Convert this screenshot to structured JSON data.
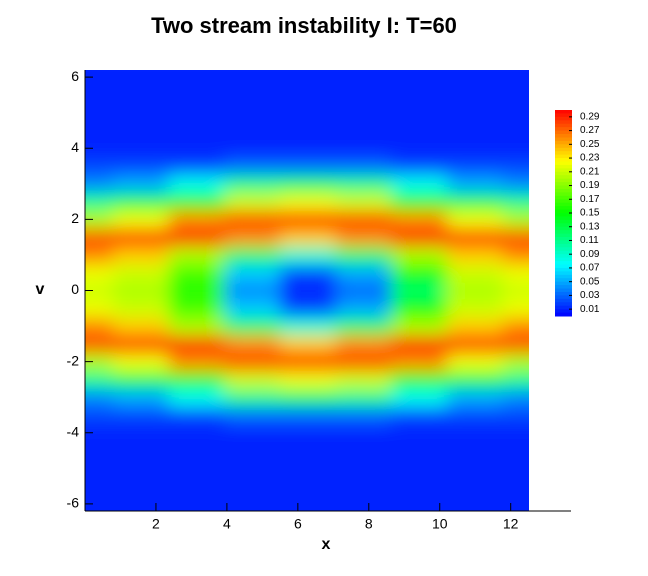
{
  "chart_data": {
    "type": "contour",
    "title": "Two stream instability I: T=60",
    "x_label": "x",
    "y_label": "v",
    "x": [
      0,
      1.57,
      3.14,
      4.71,
      6.28,
      7.85,
      9.42,
      10.99,
      12.57
    ],
    "y": [
      -6,
      -5.5,
      -5,
      -4.5,
      -4,
      -3.5,
      -3,
      -2.5,
      -2,
      -1.5,
      -1,
      -0.5,
      0,
      0.5,
      1,
      1.5,
      2,
      2.5,
      3,
      3.5,
      4,
      4.5,
      5,
      5.5,
      6
    ],
    "z": [
      [
        0.01,
        0.01,
        0.01,
        0.01,
        0.01,
        0.01,
        0.01,
        0.01,
        0.01
      ],
      [
        0.01,
        0.01,
        0.01,
        0.01,
        0.01,
        0.01,
        0.01,
        0.01,
        0.01
      ],
      [
        0.01,
        0.01,
        0.01,
        0.01,
        0.01,
        0.01,
        0.01,
        0.01,
        0.01
      ],
      [
        0.01,
        0.01,
        0.01,
        0.01,
        0.01,
        0.01,
        0.01,
        0.01,
        0.01
      ],
      [
        0.01,
        0.01,
        0.01,
        0.01,
        0.01,
        0.01,
        0.01,
        0.01,
        0.01
      ],
      [
        0.02,
        0.02,
        0.02,
        0.03,
        0.03,
        0.03,
        0.02,
        0.02,
        0.02
      ],
      [
        0.04,
        0.05,
        0.08,
        0.11,
        0.12,
        0.11,
        0.08,
        0.05,
        0.04
      ],
      [
        0.11,
        0.13,
        0.16,
        0.21,
        0.22,
        0.21,
        0.16,
        0.13,
        0.11
      ],
      [
        0.2,
        0.22,
        0.26,
        0.28,
        0.29,
        0.28,
        0.26,
        0.22,
        0.2
      ],
      [
        0.28,
        0.29,
        0.29,
        0.26,
        0.24,
        0.26,
        0.29,
        0.29,
        0.28
      ],
      [
        0.26,
        0.24,
        0.2,
        0.12,
        0.09,
        0.12,
        0.2,
        0.24,
        0.26
      ],
      [
        0.22,
        0.21,
        0.17,
        0.06,
        0.02,
        0.05,
        0.15,
        0.21,
        0.22
      ],
      [
        0.21,
        0.2,
        0.16,
        0.04,
        0.01,
        0.03,
        0.12,
        0.2,
        0.21
      ],
      [
        0.22,
        0.21,
        0.17,
        0.06,
        0.02,
        0.05,
        0.15,
        0.21,
        0.22
      ],
      [
        0.26,
        0.24,
        0.2,
        0.12,
        0.09,
        0.12,
        0.2,
        0.24,
        0.26
      ],
      [
        0.28,
        0.29,
        0.29,
        0.26,
        0.24,
        0.26,
        0.29,
        0.29,
        0.28
      ],
      [
        0.2,
        0.22,
        0.26,
        0.28,
        0.29,
        0.28,
        0.26,
        0.22,
        0.2
      ],
      [
        0.11,
        0.13,
        0.16,
        0.21,
        0.22,
        0.21,
        0.16,
        0.13,
        0.11
      ],
      [
        0.04,
        0.05,
        0.08,
        0.11,
        0.12,
        0.11,
        0.08,
        0.05,
        0.04
      ],
      [
        0.02,
        0.02,
        0.02,
        0.03,
        0.03,
        0.03,
        0.02,
        0.02,
        0.02
      ],
      [
        0.01,
        0.01,
        0.01,
        0.01,
        0.01,
        0.01,
        0.01,
        0.01,
        0.01
      ],
      [
        0.01,
        0.01,
        0.01,
        0.01,
        0.01,
        0.01,
        0.01,
        0.01,
        0.01
      ],
      [
        0.01,
        0.01,
        0.01,
        0.01,
        0.01,
        0.01,
        0.01,
        0.01,
        0.01
      ],
      [
        0.01,
        0.01,
        0.01,
        0.01,
        0.01,
        0.01,
        0.01,
        0.01,
        0.01
      ],
      [
        0.01,
        0.01,
        0.01,
        0.01,
        0.01,
        0.01,
        0.01,
        0.01,
        0.01
      ]
    ],
    "xlim": [
      0,
      13.7
    ],
    "ylim": [
      -6.2,
      6.2
    ],
    "xticks": [
      2,
      4,
      6,
      8,
      10,
      12
    ],
    "yticks": [
      -6,
      -4,
      -2,
      0,
      2,
      4,
      6
    ],
    "colormap": [
      "#0000ff",
      "#00ffff",
      "#00ff00",
      "#ffff00",
      "#ff0000"
    ],
    "clim": [
      0,
      0.3
    ],
    "colorbar_ticks": [
      0.01,
      0.03,
      0.05,
      0.07,
      0.09,
      0.11,
      0.13,
      0.15,
      0.17,
      0.19,
      0.21,
      0.23,
      0.25,
      0.27,
      0.29
    ]
  }
}
